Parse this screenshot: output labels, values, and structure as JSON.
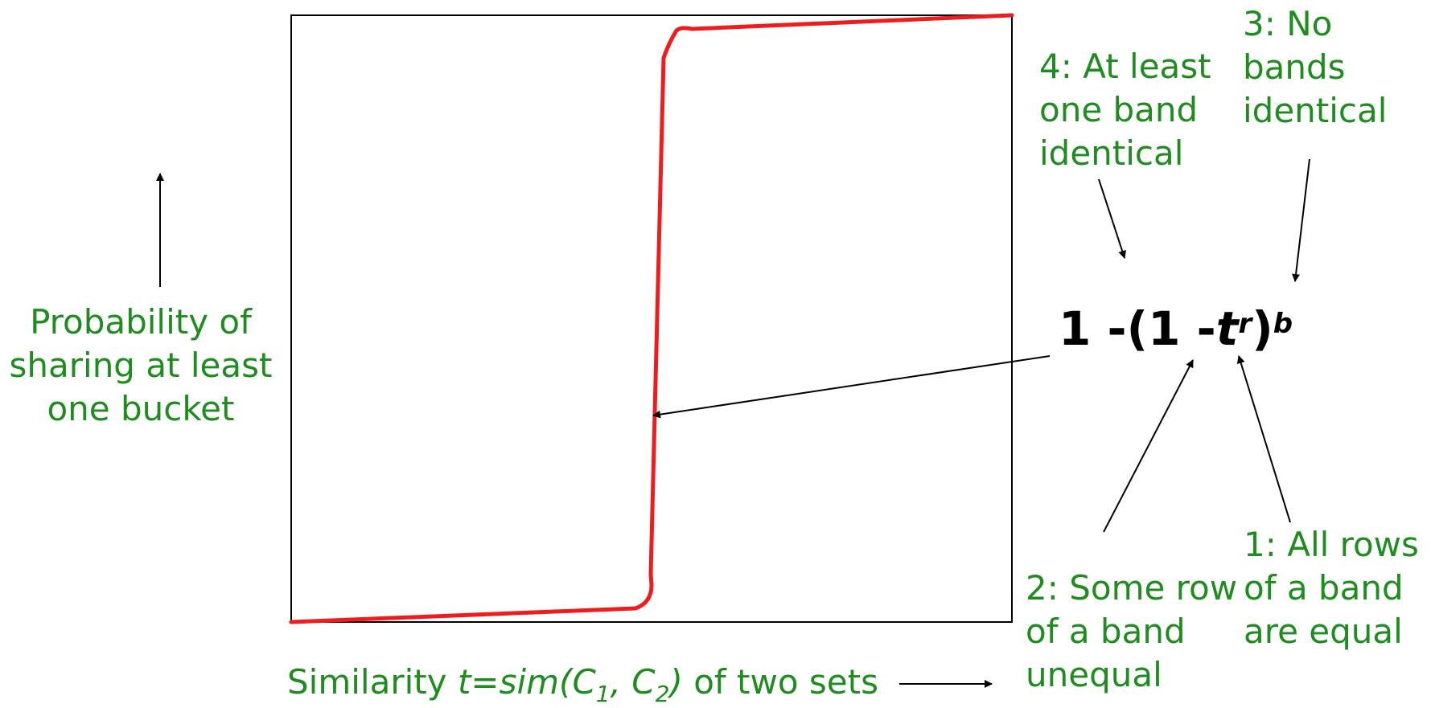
{
  "colors": {
    "curve": "#ee1c1c",
    "label": "#1e8c1e",
    "axis": "#000000"
  },
  "ylabel": {
    "line1": "Probability of",
    "line2": "sharing at least",
    "line3": "one bucket"
  },
  "xlabel": {
    "prefix": "Similarity ",
    "t_eq": "t=sim(C",
    "sub1": "1",
    "comma": ", C",
    "sub2": "2",
    "close": ")",
    "suffix": " of two sets"
  },
  "formula": {
    "part1": "1 -(1 -",
    "t": "t",
    "r": "r",
    "close": ")",
    "b": "b"
  },
  "annotations": {
    "label4": {
      "line1": "4: At least",
      "line2": "one band",
      "line3": "identical"
    },
    "label3": {
      "line1": "3: No",
      "line2": "bands",
      "line3": "identical"
    },
    "label2": {
      "line1": "2: Some row",
      "line2": "of a band",
      "line3": "unequal"
    },
    "label1": {
      "line1": "1: All rows",
      "line2": "of a band",
      "line3": "are equal"
    }
  }
}
